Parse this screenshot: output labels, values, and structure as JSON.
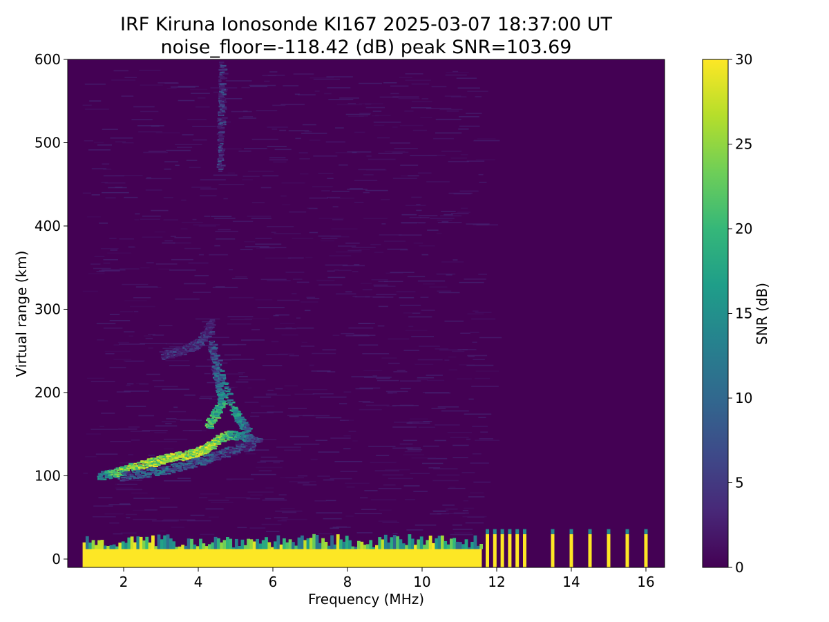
{
  "chart_data": {
    "type": "heatmap",
    "title_line1": "IRF Kiruna Ionosonde KI167 2025-03-07 18:37:00  UT",
    "title_line2": "noise_floor=-118.42 (dB) peak SNR=103.69",
    "xlabel": "Frequency (MHz)",
    "ylabel": "Virtual range (km)",
    "colorbar_label": "SNR (dB)",
    "xlim": [
      0.5,
      16.5
    ],
    "ylim": [
      -10,
      600
    ],
    "clim": [
      0,
      30
    ],
    "xticks": [
      2,
      4,
      6,
      8,
      10,
      12,
      14,
      16
    ],
    "yticks": [
      0,
      100,
      200,
      300,
      400,
      500,
      600
    ],
    "cbar_ticks": [
      0,
      5,
      10,
      15,
      20,
      25,
      30
    ],
    "colormap": "viridis",
    "colormap_stops": [
      "#440154",
      "#482878",
      "#3e4a89",
      "#31688e",
      "#26828e",
      "#1f9e89",
      "#35b779",
      "#6ece58",
      "#b5de2b",
      "#fde725"
    ],
    "frequency_coverage_mhz": [
      0.9,
      16.3
    ],
    "ground_clutter": {
      "range_km": [
        -10,
        30
      ],
      "snr_db": 30,
      "continuous_until_mhz": 11.6,
      "discrete_channels_mhz": [
        11.75,
        11.95,
        12.15,
        12.35,
        12.55,
        12.75,
        13.5,
        14.0,
        14.5,
        15.0,
        15.5,
        16.0
      ]
    },
    "traces": [
      {
        "layer": "E",
        "points_mhz_km_snr": [
          [
            1.3,
            100,
            16
          ],
          [
            1.8,
            105,
            26
          ],
          [
            2.3,
            112,
            30
          ],
          [
            2.8,
            118,
            30
          ],
          [
            3.2,
            123,
            30
          ],
          [
            3.6,
            125,
            30
          ],
          [
            3.9,
            128,
            30
          ],
          [
            4.1,
            132,
            30
          ],
          [
            4.3,
            138,
            30
          ],
          [
            4.5,
            145,
            28
          ],
          [
            4.8,
            150,
            24
          ],
          [
            5.2,
            148,
            16
          ],
          [
            5.6,
            142,
            10
          ]
        ]
      },
      {
        "layer": "E-lower",
        "points_mhz_km_snr": [
          [
            1.9,
            100,
            10
          ],
          [
            2.6,
            104,
            14
          ],
          [
            3.3,
            110,
            14
          ],
          [
            3.9,
            117,
            12
          ],
          [
            4.4,
            124,
            12
          ],
          [
            5.0,
            133,
            10
          ],
          [
            5.5,
            138,
            8
          ]
        ]
      },
      {
        "layer": "Es-spread",
        "points_mhz_km_snr": [
          [
            4.2,
            160,
            26
          ],
          [
            4.4,
            175,
            24
          ],
          [
            4.6,
            190,
            22
          ],
          [
            4.5,
            210,
            16
          ],
          [
            4.4,
            230,
            12
          ],
          [
            4.3,
            260,
            10
          ],
          [
            4.9,
            180,
            22
          ],
          [
            5.1,
            165,
            18
          ],
          [
            5.3,
            155,
            14
          ]
        ]
      },
      {
        "layer": "F-trace",
        "points_mhz_km_snr": [
          [
            3.0,
            245,
            6
          ],
          [
            3.4,
            250,
            7
          ],
          [
            3.8,
            256,
            8
          ],
          [
            4.0,
            262,
            9
          ],
          [
            4.2,
            272,
            8
          ],
          [
            4.3,
            285,
            6
          ]
        ]
      },
      {
        "layer": "vertical-streak",
        "points_mhz_km_snr": [
          [
            4.55,
            470,
            8
          ],
          [
            4.55,
            520,
            8
          ],
          [
            4.6,
            560,
            9
          ],
          [
            4.6,
            595,
            8
          ]
        ]
      }
    ]
  }
}
